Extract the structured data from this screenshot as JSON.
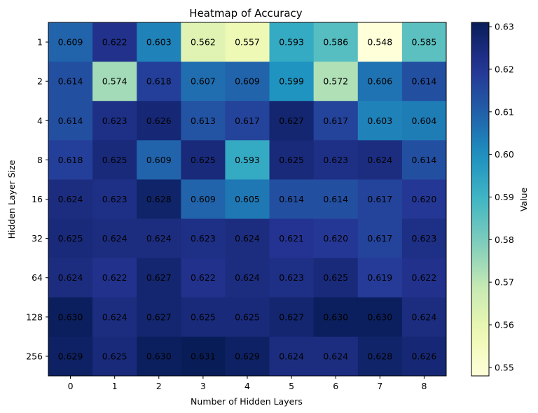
{
  "chart_data": {
    "type": "heatmap",
    "title": "Heatmap of Accuracy",
    "xlabel": "Number of Hidden Layers",
    "ylabel": "Hidden Layer Size",
    "x_categories": [
      "0",
      "1",
      "2",
      "3",
      "4",
      "5",
      "6",
      "7",
      "8"
    ],
    "y_categories": [
      "1",
      "2",
      "4",
      "8",
      "16",
      "32",
      "64",
      "128",
      "256"
    ],
    "values": [
      [
        0.609,
        0.622,
        0.603,
        0.562,
        0.557,
        0.593,
        0.586,
        0.548,
        0.585
      ],
      [
        0.614,
        0.574,
        0.618,
        0.607,
        0.609,
        0.599,
        0.572,
        0.606,
        0.614
      ],
      [
        0.614,
        0.623,
        0.626,
        0.613,
        0.617,
        0.627,
        0.617,
        0.603,
        0.604
      ],
      [
        0.618,
        0.625,
        0.609,
        0.625,
        0.593,
        0.625,
        0.623,
        0.624,
        0.614
      ],
      [
        0.624,
        0.623,
        0.628,
        0.609,
        0.605,
        0.614,
        0.614,
        0.617,
        0.62
      ],
      [
        0.625,
        0.624,
        0.624,
        0.623,
        0.624,
        0.621,
        0.62,
        0.617,
        0.623
      ],
      [
        0.624,
        0.622,
        0.627,
        0.622,
        0.624,
        0.623,
        0.625,
        0.619,
        0.622
      ],
      [
        0.63,
        0.624,
        0.627,
        0.625,
        0.625,
        0.627,
        0.63,
        0.63,
        0.624
      ],
      [
        0.629,
        0.625,
        0.63,
        0.631,
        0.629,
        0.624,
        0.624,
        0.628,
        0.626
      ]
    ],
    "colorbar": {
      "label": "Value",
      "min": 0.548,
      "max": 0.631,
      "ticks": [
        "0.55",
        "0.56",
        "0.57",
        "0.58",
        "0.59",
        "0.60",
        "0.61",
        "0.62",
        "0.63"
      ],
      "colormap": "YlGnBu"
    },
    "grid": false
  }
}
